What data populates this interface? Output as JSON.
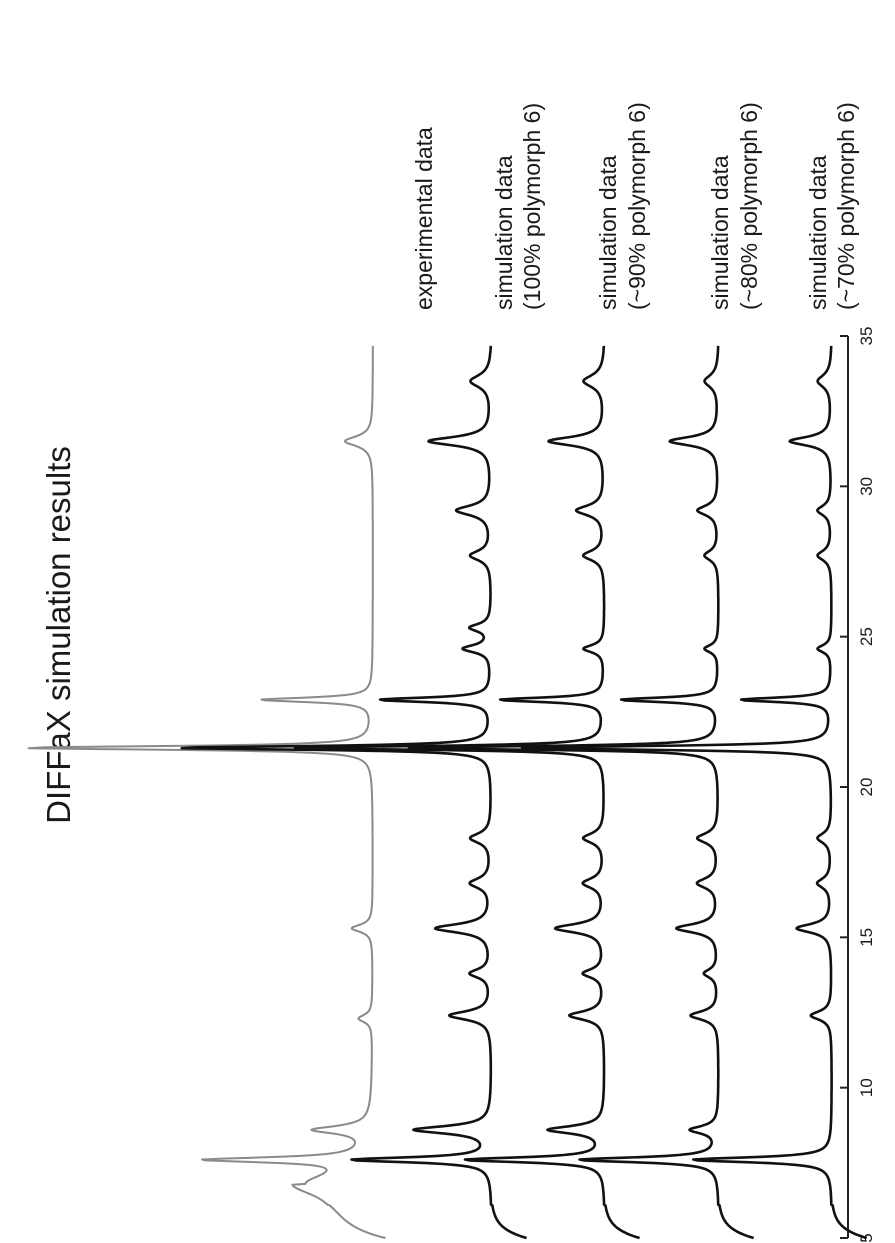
{
  "chart_data": {
    "type": "line",
    "title": "DIFFaX simulation results",
    "xlabel": "",
    "ylabel": "",
    "orientation": "rotated 90 degrees counter-clockwise (x axis along right edge, values increasing upward)",
    "xlim": [
      5,
      35
    ],
    "x_ticks": [
      {
        "value": 5,
        "label": "5"
      },
      {
        "value": 10,
        "label": "10"
      },
      {
        "value": 15,
        "label": "15"
      },
      {
        "value": 20,
        "label": "20"
      },
      {
        "value": 25,
        "label": "25"
      },
      {
        "value": 30,
        "label": "30"
      },
      {
        "value": 35,
        "label": "35"
      }
    ],
    "grid": false,
    "legend_placement": "labels beside each trace, at the high-x end",
    "series": [
      {
        "name": "experimental data",
        "label_lines": [
          "experimental data"
        ],
        "color": "#8a8a8a",
        "baseline": 0.04,
        "peaks": [
          [
            6.8,
            0.08,
            0.9
          ],
          [
            7.6,
            0.22,
            0.2
          ],
          [
            8.6,
            0.08,
            0.3
          ],
          [
            12.3,
            0.02,
            0.3
          ],
          [
            15.3,
            0.03,
            0.3
          ],
          [
            21.3,
            0.5,
            0.15
          ],
          [
            22.9,
            0.16,
            0.18
          ],
          [
            31.5,
            0.04,
            0.4
          ]
        ]
      },
      {
        "name": "simulation data (100% polymorph 6)",
        "label_lines": [
          "simulation data",
          "(100% polymorph 6)"
        ],
        "color": "#111111",
        "baseline": 0.0,
        "peaks": [
          [
            7.6,
            0.2,
            0.2
          ],
          [
            8.6,
            0.11,
            0.3
          ],
          [
            12.4,
            0.06,
            0.35
          ],
          [
            13.8,
            0.03,
            0.35
          ],
          [
            15.3,
            0.08,
            0.35
          ],
          [
            16.8,
            0.03,
            0.4
          ],
          [
            18.3,
            0.03,
            0.4
          ],
          [
            21.3,
            0.45,
            0.15
          ],
          [
            22.9,
            0.16,
            0.18
          ],
          [
            24.6,
            0.04,
            0.3
          ],
          [
            25.3,
            0.03,
            0.3
          ],
          [
            27.7,
            0.03,
            0.4
          ],
          [
            29.2,
            0.05,
            0.4
          ],
          [
            31.5,
            0.09,
            0.35
          ],
          [
            33.5,
            0.03,
            0.5
          ]
        ]
      },
      {
        "name": "simulation data (~90% polymorph 6)",
        "label_lines": [
          "simulation data",
          "(~90% polymorph 6)"
        ],
        "color": "#111111",
        "baseline": 0.0,
        "peaks": [
          [
            7.6,
            0.2,
            0.2
          ],
          [
            8.6,
            0.08,
            0.3
          ],
          [
            12.4,
            0.05,
            0.35
          ],
          [
            13.8,
            0.03,
            0.35
          ],
          [
            15.3,
            0.07,
            0.35
          ],
          [
            16.8,
            0.03,
            0.4
          ],
          [
            18.3,
            0.03,
            0.4
          ],
          [
            21.3,
            0.45,
            0.15
          ],
          [
            22.9,
            0.15,
            0.18
          ],
          [
            24.6,
            0.03,
            0.3
          ],
          [
            27.7,
            0.03,
            0.4
          ],
          [
            29.2,
            0.04,
            0.4
          ],
          [
            31.5,
            0.08,
            0.35
          ],
          [
            33.5,
            0.03,
            0.5
          ]
        ]
      },
      {
        "name": "simulation data (~80% polymorph 6)",
        "label_lines": [
          "simulation data",
          "(~80% polymorph 6)"
        ],
        "color": "#111111",
        "baseline": 0.0,
        "peaks": [
          [
            7.6,
            0.2,
            0.2
          ],
          [
            8.6,
            0.04,
            0.3
          ],
          [
            12.4,
            0.04,
            0.35
          ],
          [
            13.8,
            0.02,
            0.35
          ],
          [
            15.3,
            0.06,
            0.35
          ],
          [
            16.8,
            0.03,
            0.4
          ],
          [
            18.3,
            0.03,
            0.4
          ],
          [
            21.3,
            0.45,
            0.15
          ],
          [
            22.9,
            0.14,
            0.18
          ],
          [
            24.6,
            0.02,
            0.3
          ],
          [
            27.7,
            0.02,
            0.4
          ],
          [
            29.2,
            0.03,
            0.4
          ],
          [
            31.5,
            0.07,
            0.35
          ],
          [
            33.5,
            0.02,
            0.5
          ]
        ]
      },
      {
        "name": "simulation data (~70% polymorph 6)",
        "label_lines": [
          "simulation data",
          "(~70% polymorph 6)"
        ],
        "color": "#111111",
        "baseline": 0.0,
        "peaks": [
          [
            7.6,
            0.2,
            0.2
          ],
          [
            12.4,
            0.03,
            0.35
          ],
          [
            15.3,
            0.05,
            0.35
          ],
          [
            16.8,
            0.02,
            0.4
          ],
          [
            18.3,
            0.02,
            0.4
          ],
          [
            21.3,
            0.45,
            0.15
          ],
          [
            22.9,
            0.13,
            0.18
          ],
          [
            24.6,
            0.02,
            0.3
          ],
          [
            27.7,
            0.02,
            0.4
          ],
          [
            29.2,
            0.02,
            0.4
          ],
          [
            31.5,
            0.06,
            0.35
          ],
          [
            33.5,
            0.02,
            0.5
          ]
        ]
      }
    ]
  }
}
